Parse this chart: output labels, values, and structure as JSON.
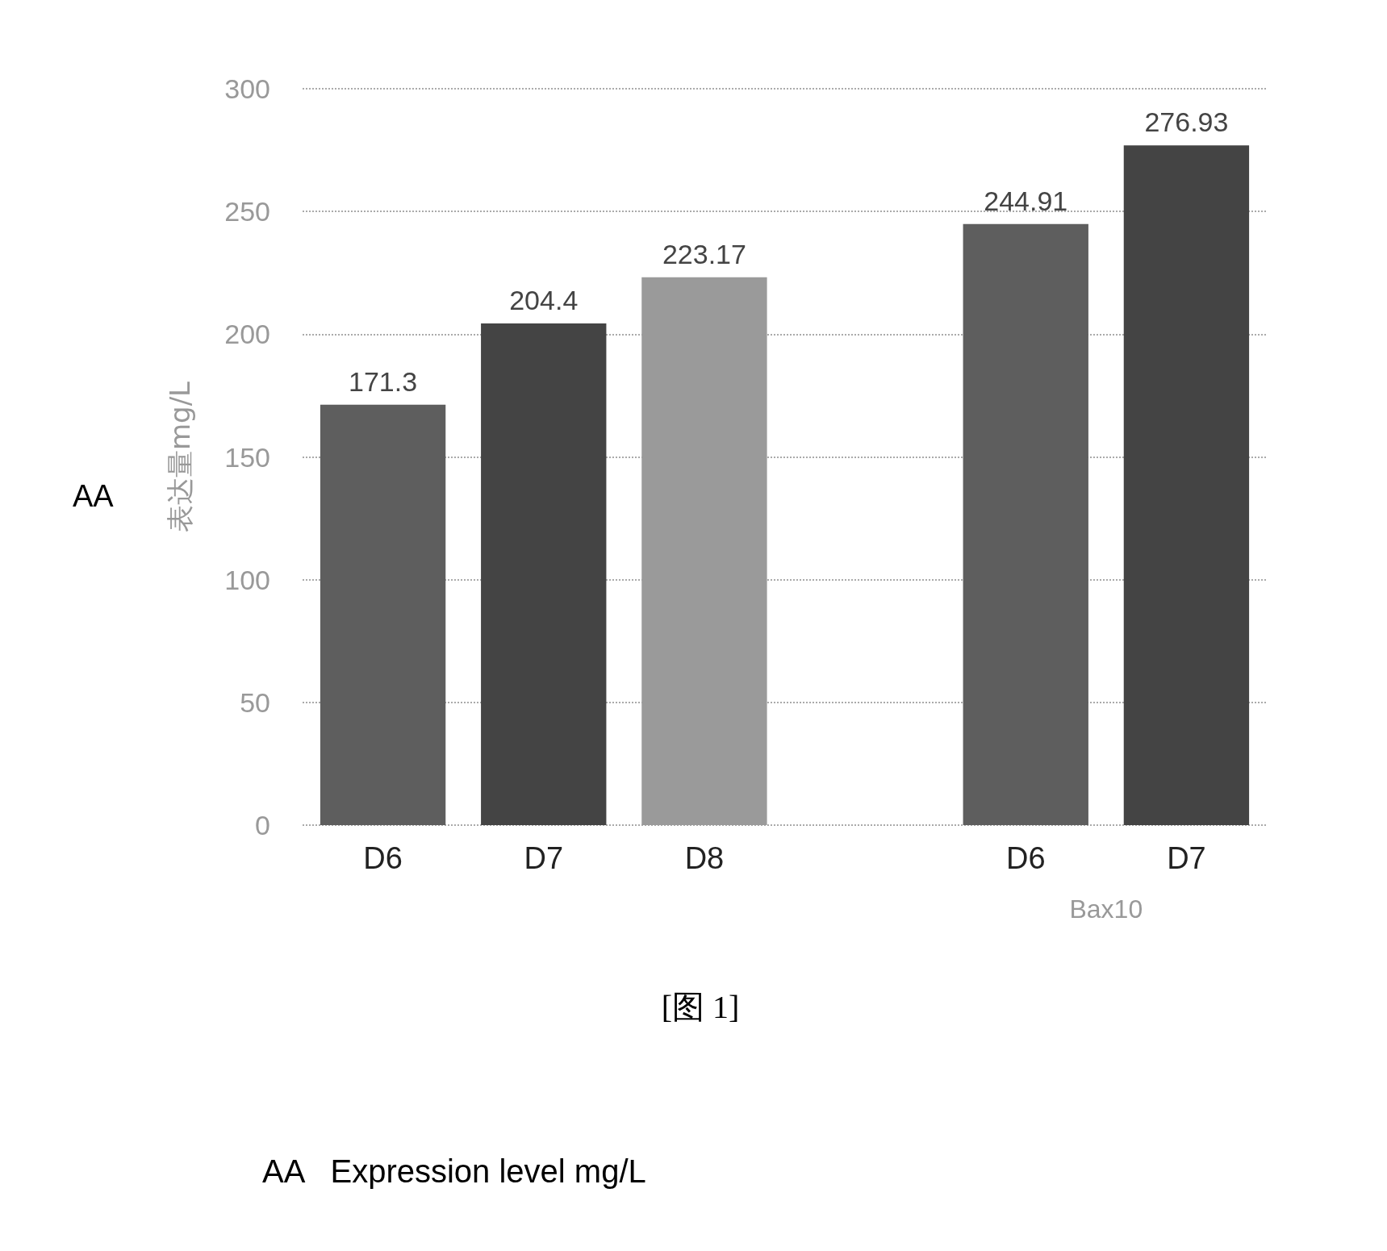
{
  "chart_data": {
    "type": "bar",
    "ylabel": "表达量mg/L",
    "categories": [
      "D6",
      "D7",
      "D8",
      null,
      "D6",
      "D7"
    ],
    "values": [
      171.3,
      204.4,
      223.17,
      null,
      244.91,
      276.93
    ],
    "colors": [
      "#5e5e5e",
      "#444444",
      "#9a9a9a",
      "#5e5e5e",
      "#5e5e5e",
      "#444444"
    ],
    "ylim": [
      0,
      300
    ],
    "yticks": [
      0,
      50,
      100,
      150,
      200,
      250,
      300
    ],
    "grid": "y",
    "data_labels": true,
    "annotations": [
      "Bax10",
      "AA",
      "[图 1]",
      "AA   Expression level mg/L"
    ]
  }
}
